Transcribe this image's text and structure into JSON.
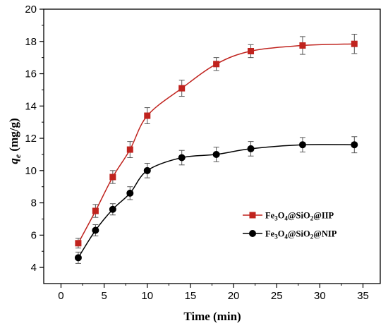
{
  "chart_data": {
    "type": "line",
    "xlabel": "Time (min)",
    "ylabel_var": "q",
    "ylabel_sub": "e",
    "ylabel_unit": " (mg/g)",
    "xlim": [
      -2,
      37
    ],
    "ylim": [
      3,
      20
    ],
    "xticks": [
      0,
      5,
      10,
      15,
      20,
      25,
      30,
      35
    ],
    "yticks": [
      4,
      6,
      8,
      10,
      12,
      14,
      16,
      18,
      20
    ],
    "legend_position": "right-middle",
    "series": [
      {
        "name_parts": [
          "Fe",
          "3",
          "O",
          "4",
          "@SiO",
          "2",
          "@IIP"
        ],
        "color": "#c0231e",
        "marker": "square",
        "x": [
          2,
          4,
          6,
          8,
          10,
          14,
          18,
          22,
          28,
          34
        ],
        "y": [
          5.5,
          7.5,
          9.6,
          11.3,
          13.4,
          15.1,
          16.6,
          17.4,
          17.75,
          17.85
        ],
        "err": [
          0.3,
          0.4,
          0.4,
          0.5,
          0.5,
          0.5,
          0.4,
          0.4,
          0.55,
          0.6
        ]
      },
      {
        "name_parts": [
          "Fe",
          "3",
          "O",
          "4",
          "@SiO",
          "2",
          "@NIP"
        ],
        "color": "#000000",
        "marker": "circle",
        "x": [
          2,
          4,
          6,
          8,
          10,
          14,
          18,
          22,
          28,
          34
        ],
        "y": [
          4.6,
          6.3,
          7.6,
          8.6,
          10.0,
          10.8,
          11.0,
          11.35,
          11.6,
          11.6
        ],
        "err": [
          0.35,
          0.35,
          0.35,
          0.4,
          0.45,
          0.45,
          0.45,
          0.45,
          0.45,
          0.5
        ]
      }
    ]
  }
}
